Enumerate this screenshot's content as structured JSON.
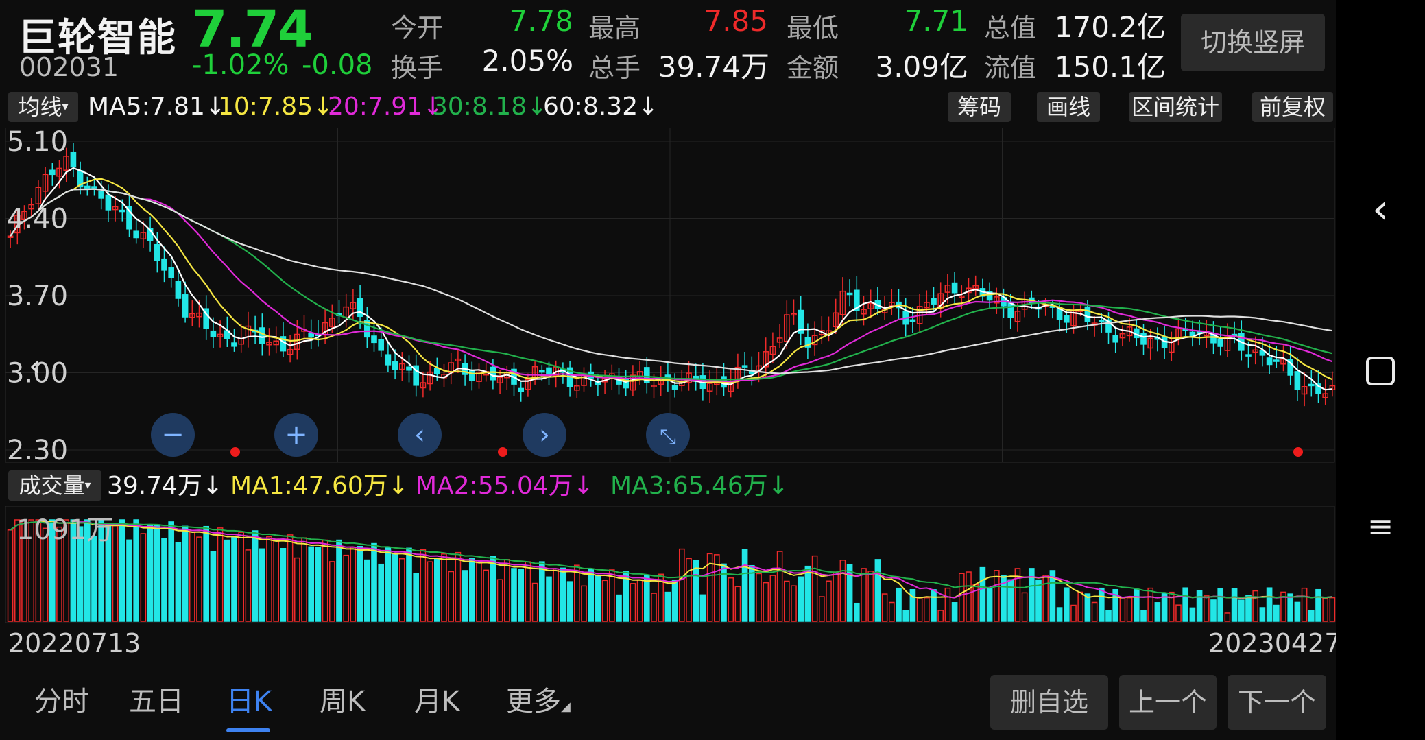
{
  "stock": {
    "name": "巨轮智能",
    "code": "002031",
    "price": "7.74",
    "change_pct": "-1.02%",
    "change": "-0.08"
  },
  "quote": {
    "open_label": "今开",
    "open": "7.78",
    "high_label": "最高",
    "high": "7.85",
    "low_label": "最低",
    "low": "7.71",
    "mktcap_label": "总值",
    "mktcap": "170.2亿",
    "turnover_label": "换手",
    "turnover": "2.05%",
    "volume_label": "总手",
    "volume": "39.74万",
    "amount_label": "金额",
    "amount": "3.09亿",
    "float_label": "流值",
    "float_cap": "150.1亿"
  },
  "orient_button": "切换竖屏",
  "ma_bar": {
    "selector": "均线",
    "ma5": "MA5:7.81↓",
    "ma10": "10:7.85↓",
    "ma20": "20:7.91↓",
    "ma30": "30:8.18↓",
    "ma60": "60:8.32↓",
    "tools": [
      "筹码",
      "画线",
      "区间统计",
      "前复权"
    ]
  },
  "price_axis": [
    "5.10",
    "4.40",
    "3.70",
    "3.00",
    "2.30"
  ],
  "vol_bar": {
    "selector": "成交量",
    "vol": "39.74万↓",
    "ma1": "MA1:47.60万↓",
    "ma2": "MA2:55.04万↓",
    "ma3": "MA3:65.46万↓",
    "axis_max": "1091万"
  },
  "dates": {
    "start": "20220713",
    "end": "20230427"
  },
  "tabs": [
    "分时",
    "五日",
    "日K",
    "周K",
    "月K",
    "更多"
  ],
  "active_tab": 2,
  "actions": {
    "remove": "删自选",
    "prev": "上一个",
    "next": "下一个"
  },
  "nav_icons": [
    "minus-icon",
    "plus-icon",
    "chevron-left-icon",
    "chevron-right-icon",
    "collapse-icon"
  ],
  "colors": {
    "up": "#ee2a2a",
    "down": "#22e6e6",
    "ma5": "#ffffff",
    "ma10": "#f5e642",
    "ma20": "#e02ad8",
    "ma30": "#22b14c",
    "ma60": "#e0e0e0"
  },
  "chart_data": {
    "type": "candlestick",
    "title": "",
    "price_axis_ticks": [
      5.1,
      4.4,
      3.7,
      3.0,
      2.3
    ],
    "ylim": [
      2.3,
      5.1
    ],
    "x_range": [
      "20220713",
      "20230427"
    ],
    "volume_axis_max": "1091万",
    "close_trend": [
      4.2,
      4.6,
      4.8,
      4.9,
      4.7,
      4.5,
      4.4,
      4.2,
      3.9,
      3.6,
      3.4,
      3.3,
      3.35,
      3.3,
      3.25,
      3.3,
      3.4,
      3.6,
      3.5,
      3.2,
      3.0,
      2.95,
      3.0,
      3.05,
      3.0,
      2.95,
      2.9,
      3.0,
      3.0,
      2.95,
      2.9,
      2.95,
      2.95,
      2.9,
      2.95,
      2.9,
      2.9,
      2.95,
      3.0,
      3.2,
      3.5,
      3.3,
      3.4,
      3.7,
      3.6,
      3.6,
      3.5,
      3.6,
      3.7,
      3.8,
      3.7,
      3.6,
      3.6,
      3.6,
      3.55,
      3.5,
      3.45,
      3.35,
      3.3,
      3.3,
      3.3,
      3.4,
      3.3,
      3.25,
      3.2,
      3.1,
      2.95,
      2.85,
      2.8
    ],
    "series": [
      {
        "name": "MA5",
        "value": 7.81
      },
      {
        "name": "MA10",
        "value": 7.85
      },
      {
        "name": "MA20",
        "value": 7.91
      },
      {
        "name": "MA30",
        "value": 8.18
      },
      {
        "name": "MA60",
        "value": 8.32
      }
    ]
  }
}
